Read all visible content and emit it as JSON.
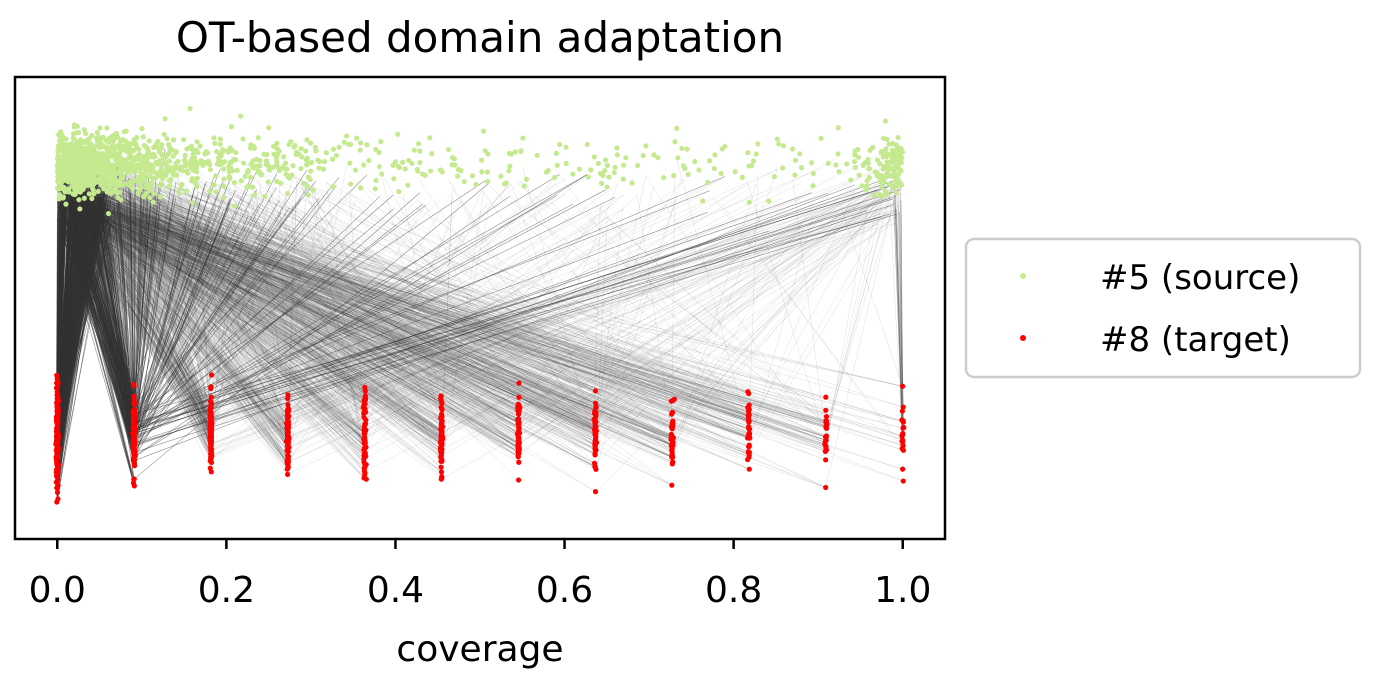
{
  "chart_data": {
    "type": "scatter",
    "title": "OT-based domain adaptation",
    "xlabel": "coverage",
    "ylabel": "",
    "xlim": [
      -0.05,
      1.05
    ],
    "ylim": [
      -1.0,
      1.0
    ],
    "x_ticks": [
      0.0,
      0.2,
      0.4,
      0.6,
      0.8,
      1.0
    ],
    "x_tick_labels": [
      "0.0",
      "0.2",
      "0.4",
      "0.6",
      "0.8",
      "1.0"
    ],
    "y_ticks_visible": false,
    "grid": false,
    "legend": {
      "placement": "outside-right",
      "entries": [
        "#5 (source)",
        "#8 (target)"
      ]
    },
    "series": [
      {
        "name": "#5 (source)",
        "color": "#c5e98f",
        "role": "source",
        "description_of_points": "dense band near the top, x spanning 0.0 to 1.0, concentrated near 0",
        "y_center": 0.62,
        "y_spread": 0.14
      },
      {
        "name": "#8 (target)",
        "color": "#ff0000",
        "role": "target",
        "x_levels": [
          0.0,
          0.0909,
          0.1818,
          0.2727,
          0.3636,
          0.4545,
          0.5455,
          0.6364,
          0.7273,
          0.8182,
          0.9091,
          1.0
        ],
        "y_center": -0.55,
        "y_spread_top": -0.35,
        "y_spread_bottom": -0.8
      }
    ],
    "transport_lines": {
      "color": "#333333",
      "meaning": "optimal transport coupling from source to target points"
    }
  }
}
